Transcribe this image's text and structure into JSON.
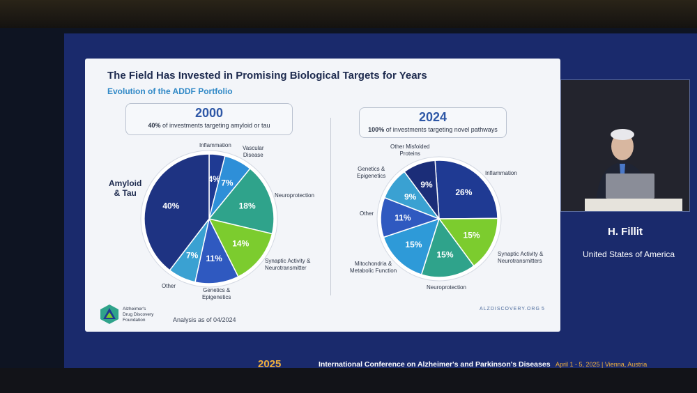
{
  "slide": {
    "title": "The Field Has Invested in Promising Biological Targets for Years",
    "subtitle": "Evolution of the ADDF Portfolio",
    "footer_org_line1": "Alzheimer's",
    "footer_org_line2": "Drug Discovery",
    "footer_org_line3": "Foundation",
    "analysis_note": "Analysis as of 04/2024",
    "url": "ALZDISCOVERY.ORG",
    "page": "5"
  },
  "speaker": {
    "name": "H. Fillit",
    "country": "United States of America"
  },
  "banner": {
    "brand": "2025",
    "conference": "International Conference on Alzheimer's and Parkinson's Diseases",
    "dates": "April 1 - 5, 2025  |  Vienna, Austria"
  },
  "colors": {
    "slide_bg": "#f3f5f9",
    "screen_bg": "#1a2a6c",
    "title": "#1d2a4e",
    "subtitle": "#2f88c6",
    "accent_year": "#2e57a6",
    "banner_accent": "#f3b13a"
  },
  "icons": [
    "addf-triangle-logo-icon"
  ],
  "chart_data": [
    {
      "type": "pie",
      "title": "2000",
      "subtitle_bold": "40%",
      "subtitle_rest": "of investments targeting amyloid or tau",
      "slices": [
        {
          "label": "Inflammation",
          "value": 4,
          "text": "4%",
          "color": "#1f3a93"
        },
        {
          "label": "Vascular Disease",
          "value": 7,
          "text": "7%",
          "color": "#2e8fd8"
        },
        {
          "label": "Neuroprotection",
          "value": 18,
          "text": "18%",
          "color": "#2fa38b"
        },
        {
          "label": "Synaptic Activity & Neurotransmitter",
          "value": 14,
          "text": "14%",
          "color": "#7ccc2e"
        },
        {
          "label": "Genetics & Epigenetics",
          "value": 11,
          "text": "11%",
          "color": "#2f59c0"
        },
        {
          "label": "Other",
          "value": 7,
          "text": "7%",
          "color": "#3aa1d2"
        },
        {
          "label": "Amyloid & Tau",
          "value": 40,
          "text": "40%",
          "color": "#1e3382"
        }
      ]
    },
    {
      "type": "pie",
      "title": "2024",
      "subtitle_bold": "100%",
      "subtitle_rest": "of investments targeting novel pathways",
      "slices": [
        {
          "label": "Inflammation",
          "value": 26,
          "text": "26%",
          "color": "#1f3a93"
        },
        {
          "label": "Synaptic Activity & Neurotransmitters",
          "value": 15,
          "text": "15%",
          "color": "#7ccc2e"
        },
        {
          "label": "Neuroprotection",
          "value": 15,
          "text": "15%",
          "color": "#2fa38b"
        },
        {
          "label": "Mitochondria & Metabolic Function",
          "value": 15,
          "text": "15%",
          "color": "#2e9ad8"
        },
        {
          "label": "Other",
          "value": 11,
          "text": "11%",
          "color": "#2f59c0"
        },
        {
          "label": "Genetics & Epigenetics",
          "value": 9,
          "text": "9%",
          "color": "#3aa1d2"
        },
        {
          "label": "Other Misfolded Proteins",
          "value": 9,
          "text": "9%",
          "color": "#1b2d78"
        }
      ]
    }
  ]
}
